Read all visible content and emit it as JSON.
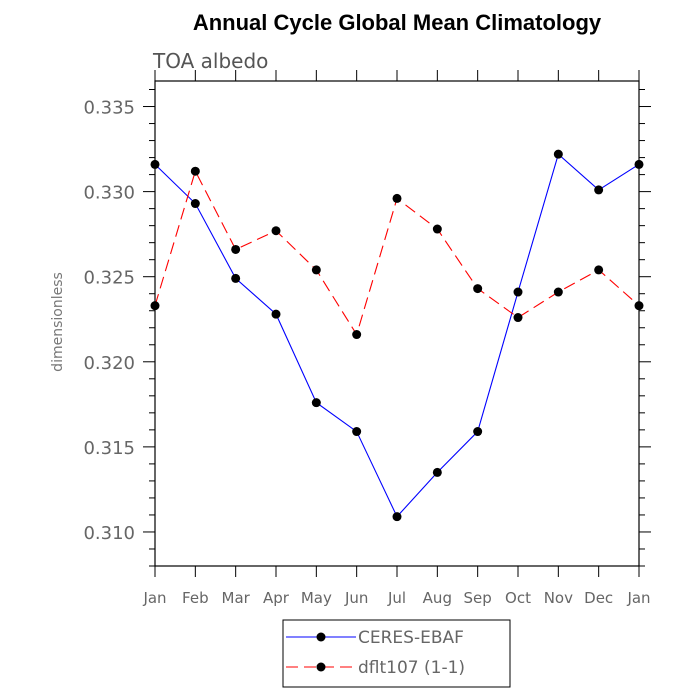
{
  "chart_data": {
    "type": "line",
    "title": "Annual Cycle Global Mean Climatology",
    "subtitle": "TOA albedo",
    "xlabel": "",
    "ylabel": "dimensionless",
    "categories": [
      "Jan",
      "Feb",
      "Mar",
      "Apr",
      "May",
      "Jun",
      "Jul",
      "Aug",
      "Sep",
      "Oct",
      "Nov",
      "Dec",
      "Jan"
    ],
    "y_ticks": [
      "0.310",
      "0.315",
      "0.320",
      "0.325",
      "0.330",
      "0.335"
    ],
    "ylim": [
      0.308,
      0.3365
    ],
    "legend_position": "bottom",
    "series": [
      {
        "name": "CERES-EBAF",
        "color": "#0000ff",
        "dash": "solid",
        "marker": "filled-circle",
        "values": [
          0.3316,
          0.3293,
          0.3249,
          0.3228,
          0.3176,
          0.3159,
          0.3109,
          0.3135,
          0.3159,
          0.3241,
          0.3322,
          0.3301,
          0.3316
        ]
      },
      {
        "name": "dflt107 (1-1)",
        "color": "#ff0000",
        "dash": "dashed",
        "marker": "filled-circle",
        "values": [
          0.3233,
          0.3312,
          0.3266,
          0.3277,
          0.3254,
          0.3216,
          0.3296,
          0.3278,
          0.3243,
          0.3226,
          0.3241,
          0.3254,
          0.3233
        ]
      }
    ]
  }
}
